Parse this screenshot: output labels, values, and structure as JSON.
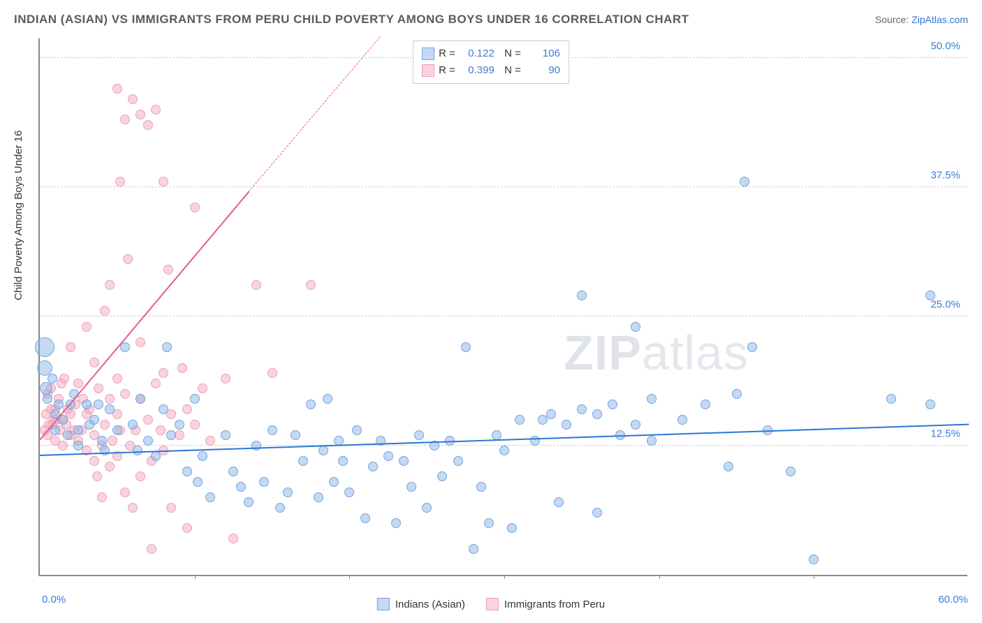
{
  "title": "INDIAN (ASIAN) VS IMMIGRANTS FROM PERU CHILD POVERTY AMONG BOYS UNDER 16 CORRELATION CHART",
  "source_prefix": "Source: ",
  "source_link": "ZipAtlas.com",
  "ylabel": "Child Poverty Among Boys Under 16",
  "watermark_bold": "ZIP",
  "watermark_thin": "atlas",
  "chart": {
    "type": "scatter",
    "xlim": [
      0,
      60
    ],
    "ylim": [
      0,
      52
    ],
    "yticks": [
      12.5,
      25.0,
      37.5,
      50.0
    ],
    "ytick_labels": [
      "12.5%",
      "25.0%",
      "37.5%",
      "50.0%"
    ],
    "xtick_min_label": "0.0%",
    "xtick_max_label": "60.0%",
    "xtick_positions": [
      10,
      20,
      30,
      40,
      50
    ],
    "background_color": "#ffffff",
    "grid_color": "#d0d0d0",
    "axis_color": "#888888"
  },
  "series": [
    {
      "name": "Indians (Asian)",
      "color_fill": "rgba(140,180,230,0.50)",
      "color_stroke": "#6fa6de",
      "trend_color": "#2b77d6",
      "marker_radius": 7,
      "R": "0.122",
      "N": "106",
      "trend": {
        "x1": 0,
        "y1": 11.5,
        "x2": 60,
        "y2": 14.5
      },
      "points": [
        [
          0.3,
          22,
          14
        ],
        [
          0.3,
          20,
          11
        ],
        [
          0.4,
          18,
          9
        ],
        [
          0.5,
          17
        ],
        [
          0.8,
          19
        ],
        [
          1.0,
          15.5
        ],
        [
          1.2,
          16.5
        ],
        [
          1.0,
          14
        ],
        [
          1.5,
          15
        ],
        [
          1.8,
          13.5
        ],
        [
          2.0,
          16.5
        ],
        [
          2.2,
          17.5
        ],
        [
          2.5,
          14
        ],
        [
          2.5,
          12.5
        ],
        [
          3.0,
          16.5
        ],
        [
          3.2,
          14.5
        ],
        [
          3.5,
          15
        ],
        [
          3.8,
          16.5
        ],
        [
          4.0,
          13
        ],
        [
          4.2,
          12
        ],
        [
          4.5,
          16
        ],
        [
          5.0,
          14
        ],
        [
          5.5,
          22
        ],
        [
          6.0,
          14.5
        ],
        [
          6.3,
          12
        ],
        [
          6.5,
          17
        ],
        [
          7.0,
          13
        ],
        [
          7.5,
          11.5
        ],
        [
          8.0,
          16
        ],
        [
          8.5,
          13.5
        ],
        [
          8.2,
          22
        ],
        [
          9.0,
          14.5
        ],
        [
          9.5,
          10
        ],
        [
          10.0,
          17
        ],
        [
          10.5,
          11.5
        ],
        [
          10.2,
          9
        ],
        [
          11.0,
          7.5
        ],
        [
          12.0,
          13.5
        ],
        [
          12.5,
          10
        ],
        [
          13.0,
          8.5
        ],
        [
          13.5,
          7
        ],
        [
          14.0,
          12.5
        ],
        [
          14.5,
          9
        ],
        [
          15.0,
          14
        ],
        [
          15.5,
          6.5
        ],
        [
          16.0,
          8
        ],
        [
          16.5,
          13.5
        ],
        [
          17.0,
          11
        ],
        [
          17.5,
          16.5
        ],
        [
          18.0,
          7.5
        ],
        [
          18.3,
          12
        ],
        [
          18.6,
          17
        ],
        [
          19.0,
          9
        ],
        [
          19.3,
          13
        ],
        [
          19.6,
          11
        ],
        [
          20.0,
          8
        ],
        [
          20.5,
          14
        ],
        [
          21.0,
          5.5
        ],
        [
          21.5,
          10.5
        ],
        [
          22.0,
          13
        ],
        [
          22.5,
          11.5
        ],
        [
          23.0,
          5
        ],
        [
          23.5,
          11
        ],
        [
          24.0,
          8.5
        ],
        [
          24.5,
          13.5
        ],
        [
          25.0,
          6.5
        ],
        [
          25.5,
          12.5
        ],
        [
          26.0,
          9.5
        ],
        [
          26.5,
          13
        ],
        [
          27.0,
          11
        ],
        [
          27.5,
          22
        ],
        [
          28.0,
          2.5
        ],
        [
          28.5,
          8.5
        ],
        [
          29.0,
          5
        ],
        [
          29.5,
          13.5
        ],
        [
          30.0,
          12
        ],
        [
          30.5,
          4.5
        ],
        [
          31.0,
          15
        ],
        [
          32.0,
          13
        ],
        [
          32.5,
          15
        ],
        [
          33.0,
          15.5
        ],
        [
          33.5,
          7
        ],
        [
          34.0,
          14.5
        ],
        [
          35.0,
          27
        ],
        [
          35.0,
          16
        ],
        [
          36.0,
          15.5
        ],
        [
          36.0,
          6
        ],
        [
          37.0,
          16.5
        ],
        [
          37.5,
          13.5
        ],
        [
          38.5,
          24
        ],
        [
          38.5,
          14.5
        ],
        [
          39.5,
          17
        ],
        [
          39.5,
          13
        ],
        [
          41.5,
          15
        ],
        [
          43.0,
          16.5
        ],
        [
          44.5,
          10.5
        ],
        [
          45.0,
          17.5
        ],
        [
          45.5,
          38
        ],
        [
          46.0,
          22
        ],
        [
          47.0,
          14
        ],
        [
          48.5,
          10
        ],
        [
          50.0,
          1.5
        ],
        [
          55.0,
          17
        ],
        [
          57.5,
          27
        ],
        [
          57.5,
          16.5
        ]
      ]
    },
    {
      "name": "Immigrants from Peru",
      "color_fill": "rgba(244,170,190,0.50)",
      "color_stroke": "#eca0b5",
      "trend_color": "#e85c86",
      "marker_radius": 7,
      "R": "0.399",
      "N": "90",
      "trend_solid": {
        "x1": 0,
        "y1": 13,
        "x2": 13.5,
        "y2": 37
      },
      "trend_dashed": {
        "x1": 13.5,
        "y1": 37,
        "x2": 22,
        "y2": 52
      },
      "points": [
        [
          0.3,
          14
        ],
        [
          0.4,
          15.5
        ],
        [
          0.5,
          13.5
        ],
        [
          0.6,
          14.5
        ],
        [
          0.7,
          16
        ],
        [
          0.8,
          14.5
        ],
        [
          0.9,
          15
        ],
        [
          0.5,
          17.5
        ],
        [
          0.7,
          18
        ],
        [
          1.0,
          13
        ],
        [
          1.0,
          16
        ],
        [
          1.1,
          15
        ],
        [
          1.2,
          17
        ],
        [
          1.3,
          14
        ],
        [
          1.4,
          18.5
        ],
        [
          1.5,
          15
        ],
        [
          1.5,
          12.5
        ],
        [
          1.6,
          19
        ],
        [
          1.7,
          14.5
        ],
        [
          1.8,
          16
        ],
        [
          2.0,
          13.5
        ],
        [
          2.0,
          15.5
        ],
        [
          2.0,
          22
        ],
        [
          2.2,
          14
        ],
        [
          2.3,
          16.5
        ],
        [
          2.5,
          18.5
        ],
        [
          2.5,
          13
        ],
        [
          2.7,
          14
        ],
        [
          2.8,
          17
        ],
        [
          3.0,
          24
        ],
        [
          3.0,
          15.5
        ],
        [
          3.0,
          12
        ],
        [
          3.2,
          16
        ],
        [
          3.5,
          20.5
        ],
        [
          3.5,
          11
        ],
        [
          3.5,
          13.5
        ],
        [
          3.7,
          9.5
        ],
        [
          3.8,
          18
        ],
        [
          4.0,
          12.5
        ],
        [
          4.0,
          7.5
        ],
        [
          4.2,
          25.5
        ],
        [
          4.2,
          14.5
        ],
        [
          4.5,
          10.5
        ],
        [
          4.5,
          17
        ],
        [
          4.5,
          28
        ],
        [
          4.7,
          13
        ],
        [
          5.0,
          47
        ],
        [
          5.0,
          15.5
        ],
        [
          5.0,
          19
        ],
        [
          5.0,
          11.5
        ],
        [
          5.2,
          14
        ],
        [
          5.2,
          38
        ],
        [
          5.5,
          44
        ],
        [
          5.5,
          17.5
        ],
        [
          5.5,
          8
        ],
        [
          5.7,
          30.5
        ],
        [
          5.8,
          12.5
        ],
        [
          6.0,
          6.5
        ],
        [
          6.0,
          46
        ],
        [
          6.2,
          14
        ],
        [
          6.5,
          44.5
        ],
        [
          6.5,
          22.5
        ],
        [
          6.5,
          17
        ],
        [
          6.5,
          9.5
        ],
        [
          7.0,
          43.5
        ],
        [
          7.0,
          15
        ],
        [
          7.2,
          11
        ],
        [
          7.2,
          2.5
        ],
        [
          7.5,
          18.5
        ],
        [
          7.5,
          45
        ],
        [
          7.8,
          14
        ],
        [
          8.0,
          38
        ],
        [
          8.0,
          12
        ],
        [
          8.0,
          19.5
        ],
        [
          8.3,
          29.5
        ],
        [
          8.5,
          15.5
        ],
        [
          8.5,
          6.5
        ],
        [
          9.0,
          13.5
        ],
        [
          9.2,
          20
        ],
        [
          9.5,
          16
        ],
        [
          9.5,
          4.5
        ],
        [
          10.0,
          35.5
        ],
        [
          10.0,
          14.5
        ],
        [
          10.5,
          18
        ],
        [
          11.0,
          13
        ],
        [
          12.0,
          19
        ],
        [
          12.5,
          3.5
        ],
        [
          14.0,
          28
        ],
        [
          15.0,
          19.5
        ],
        [
          17.5,
          28
        ]
      ]
    }
  ],
  "legend_bottom": [
    "Indians (Asian)",
    "Immigrants from Peru"
  ]
}
